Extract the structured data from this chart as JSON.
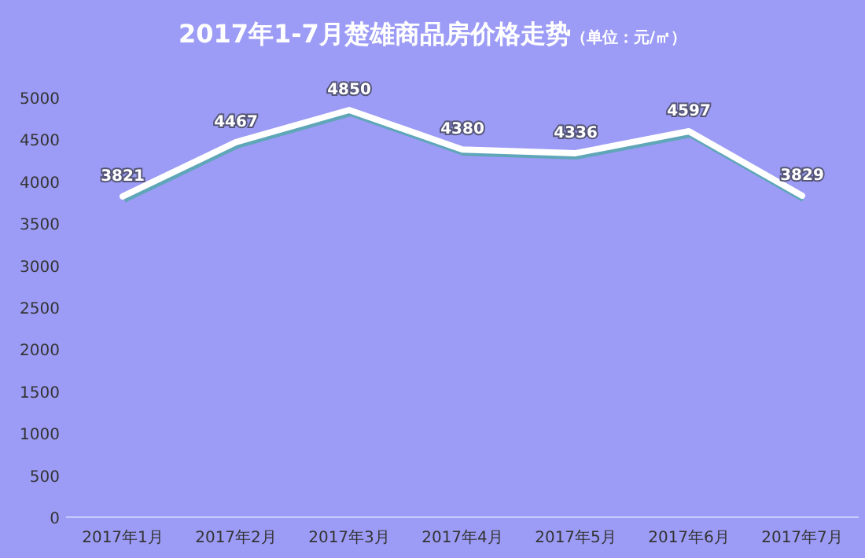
{
  "chart_data": {
    "type": "line",
    "title": "2017年1-7月楚雄商品房价格走势",
    "subtitle": "（单位：元/㎡）",
    "categories": [
      "2017年1月",
      "2017年2月",
      "2017年3月",
      "2017年4月",
      "2017年5月",
      "2017年6月",
      "2017年7月"
    ],
    "series": [
      {
        "color": "#ffffff",
        "values": [
          3821,
          4467,
          4850,
          4380,
          4336,
          4597,
          3829
        ]
      }
    ],
    "ylim": [
      0,
      5000
    ],
    "yticks": [
      0,
      500,
      1000,
      1500,
      2000,
      2500,
      3000,
      3500,
      4000,
      4500,
      5000
    ],
    "data_labels": true,
    "grid": false,
    "marker": "none",
    "line_style": "solid"
  }
}
